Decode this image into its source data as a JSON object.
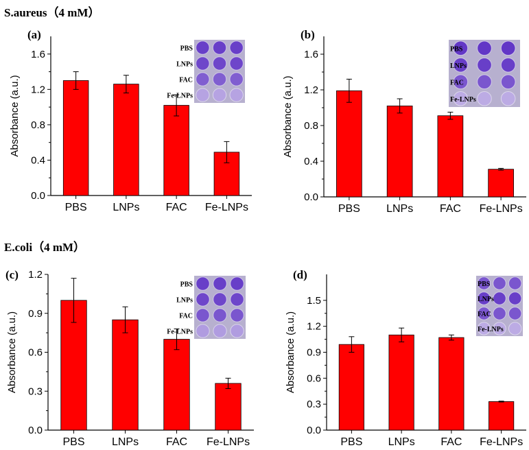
{
  "section_titles": [
    "S.aureus（4 mM）",
    "E.coli（4 mM）"
  ],
  "colors": {
    "bar": "#ff0000",
    "axis": "#000000",
    "well_dark": "#6a3fc9",
    "well_mid": "#7e57d2",
    "well_light": "#c9bde6",
    "plate": "#b7b0cf"
  },
  "chart_data": [
    {
      "type": "bar",
      "panel": "(a)",
      "title": "",
      "categories": [
        "PBS",
        "LNPs",
        "FAC",
        "Fe-LNPs"
      ],
      "values": [
        1.3,
        1.26,
        1.02,
        0.49
      ],
      "errors": [
        0.1,
        0.1,
        0.12,
        0.12
      ],
      "ylabel": "Absorbance (a.u.)",
      "xlabel": "",
      "ylim": [
        0,
        1.8
      ],
      "yticks": [
        0.0,
        0.4,
        0.8,
        1.2,
        1.6
      ],
      "tick_labels": [
        "0.0",
        "0.4",
        "0.8",
        "1.2",
        "1.6"
      ],
      "inset_labels": [
        "PBS",
        "LNPs",
        "FAC",
        "Fe-LNPs"
      ],
      "inset_intensity": [
        0.9,
        0.85,
        0.7,
        0.25
      ]
    },
    {
      "type": "bar",
      "panel": "(b)",
      "title": "",
      "categories": [
        "PBS",
        "LNPs",
        "FAC",
        "Fe-LNPs"
      ],
      "values": [
        1.19,
        1.02,
        0.91,
        0.31
      ],
      "errors": [
        0.13,
        0.08,
        0.04,
        0.01
      ],
      "ylabel": "Absorbance (a.u.)",
      "xlabel": "",
      "ylim": [
        0,
        1.8
      ],
      "yticks": [
        0.0,
        0.4,
        0.8,
        1.2,
        1.6
      ],
      "tick_labels": [
        "0.0",
        "0.4",
        "0.8",
        "1.2",
        "1.6"
      ],
      "inset_labels": [
        "PBS",
        "LNPs",
        "FAC",
        "Fe-LNPs"
      ],
      "inset_intensity": [
        0.95,
        0.9,
        0.75,
        0.2
      ]
    },
    {
      "type": "bar",
      "panel": "(c)",
      "title": "",
      "categories": [
        "PBS",
        "LNPs",
        "FAC",
        "Fe-LNPs"
      ],
      "values": [
        1.0,
        0.85,
        0.7,
        0.36
      ],
      "errors": [
        0.17,
        0.1,
        0.08,
        0.04
      ],
      "ylabel": "Absorbance (a.u.)",
      "xlabel": "",
      "ylim": [
        0,
        1.2
      ],
      "yticks": [
        0.0,
        0.3,
        0.6,
        0.9,
        1.2
      ],
      "tick_labels": [
        "0.0",
        "0.3",
        "0.6",
        "0.9",
        "1.2"
      ],
      "inset_labels": [
        "PBS",
        "LNPs",
        "FAC",
        "Fe-LNPs"
      ],
      "inset_intensity": [
        0.9,
        0.85,
        0.75,
        0.3
      ]
    },
    {
      "type": "bar",
      "panel": "(d)",
      "title": "",
      "categories": [
        "PBS",
        "LNPs",
        "FAC",
        "Fe-LNPs"
      ],
      "values": [
        0.99,
        1.1,
        1.07,
        0.33
      ],
      "errors": [
        0.09,
        0.08,
        0.03,
        0.005
      ],
      "ylabel": "Absorbance (a.u.)",
      "xlabel": "",
      "ylim": [
        0,
        1.8
      ],
      "yticks": [
        0.0,
        0.3,
        0.6,
        0.9,
        1.2,
        1.5
      ],
      "tick_labels": [
        "0.0",
        "0.3",
        "0.6",
        "0.9",
        "1.2",
        "1.5"
      ],
      "inset_labels": [
        "PBS",
        "LNPs",
        "FAC",
        "Fe-LNPs"
      ],
      "inset_intensity": [
        0.75,
        0.9,
        0.75,
        0.2
      ]
    }
  ]
}
